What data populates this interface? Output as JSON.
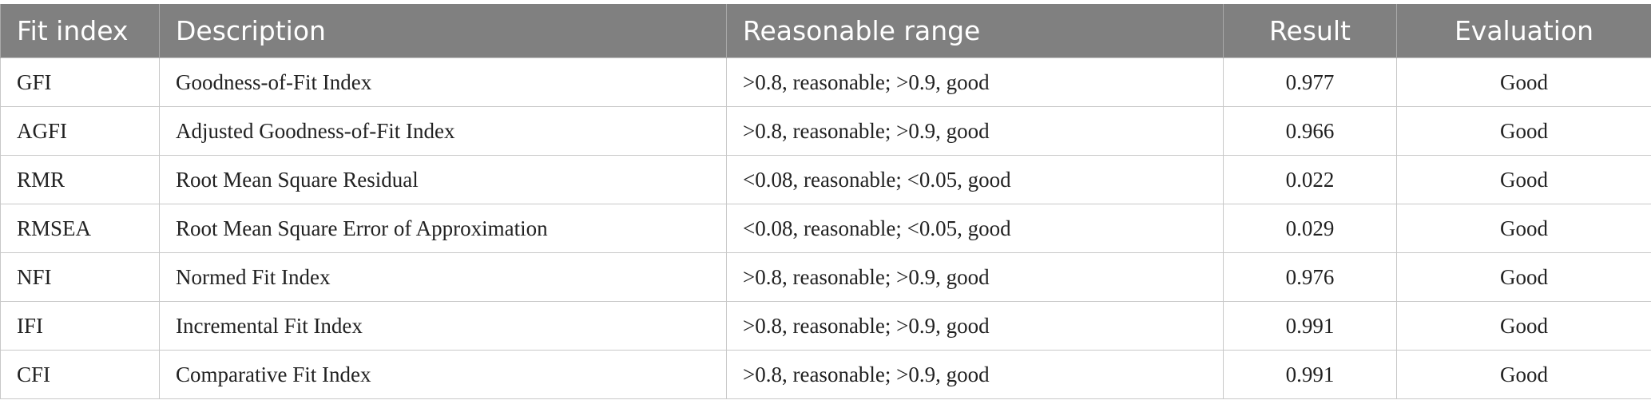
{
  "table": {
    "headers": [
      "Fit index",
      "Description",
      "Reasonable range",
      "Result",
      "Evaluation"
    ],
    "rows": [
      [
        "GFI",
        "Goodness-of-Fit Index",
        ">0.8, reasonable; >0.9, good",
        "0.977",
        "Good"
      ],
      [
        "AGFI",
        "Adjusted Goodness-of-Fit Index",
        ">0.8, reasonable; >0.9, good",
        "0.966",
        "Good"
      ],
      [
        "RMR",
        "Root Mean Square Residual",
        "<0.08, reasonable; <0.05, good",
        "0.022",
        "Good"
      ],
      [
        "RMSEA",
        "Root Mean Square Error of Approximation",
        "<0.08, reasonable; <0.05, good",
        "0.029",
        "Good"
      ],
      [
        "NFI",
        "Normed Fit Index",
        ">0.8, reasonable; >0.9, good",
        "0.976",
        "Good"
      ],
      [
        "IFI",
        "Incremental Fit Index",
        ">0.8, reasonable; >0.9, good",
        "0.991",
        "Good"
      ],
      [
        "CFI",
        "Comparative Fit Index",
        ">0.8, reasonable; >0.9, good",
        "0.991",
        "Good"
      ]
    ],
    "colors": {
      "header_bg": "#808080",
      "header_text": "#ffffff",
      "border": "#c8c8c8"
    }
  }
}
